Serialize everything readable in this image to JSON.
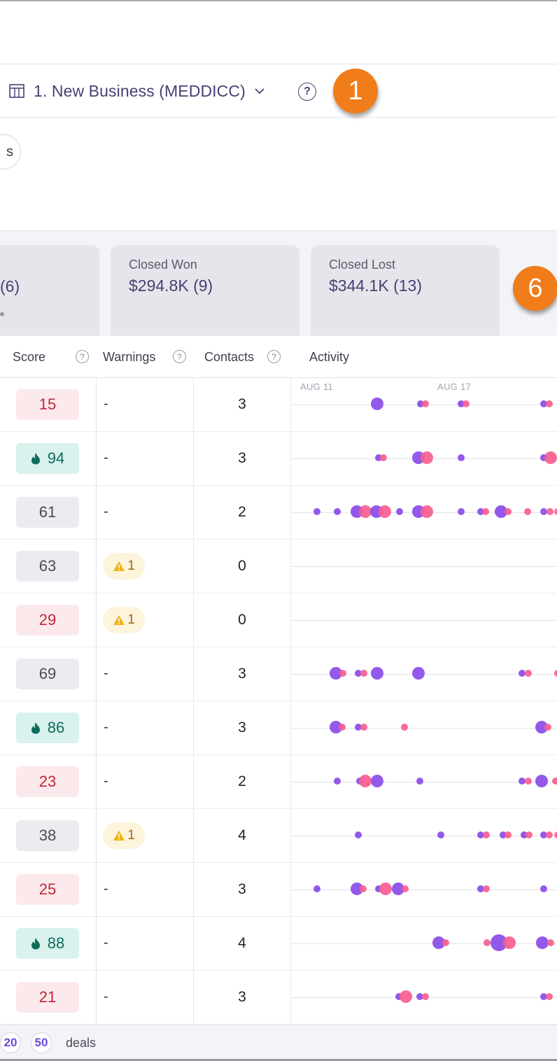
{
  "view": {
    "name": "1. New Business (MEDDICC)",
    "help": "?",
    "badge_1": "1",
    "badge_6": "6"
  },
  "filter": {
    "pill_label": "s"
  },
  "summary": {
    "partial": {
      "value": "(6)"
    },
    "won": {
      "label": "Closed Won",
      "value": "$294.8K (9)"
    },
    "lost": {
      "label": "Closed Lost",
      "value": "$344.1K (13)"
    }
  },
  "table": {
    "headers": {
      "score": "Score",
      "warnings": "Warnings",
      "contacts": "Contacts",
      "activity": "Activity"
    },
    "help": "?",
    "axis": [
      "AUG 11",
      "AUG 17"
    ],
    "rows": [
      {
        "score": "15",
        "tier": "low",
        "flame": false,
        "warning": "-",
        "warn_count": "",
        "contacts": "3"
      },
      {
        "score": "94",
        "tier": "high",
        "flame": true,
        "warning": "-",
        "warn_count": "",
        "contacts": "3"
      },
      {
        "score": "61",
        "tier": "mid",
        "flame": false,
        "warning": "-",
        "warn_count": "",
        "contacts": "2"
      },
      {
        "score": "63",
        "tier": "mid",
        "flame": false,
        "warning": "",
        "warn_count": "1",
        "contacts": "0"
      },
      {
        "score": "29",
        "tier": "low",
        "flame": false,
        "warning": "",
        "warn_count": "1",
        "contacts": "0"
      },
      {
        "score": "69",
        "tier": "mid",
        "flame": false,
        "warning": "-",
        "warn_count": "",
        "contacts": "3"
      },
      {
        "score": "86",
        "tier": "high",
        "flame": true,
        "warning": "-",
        "warn_count": "",
        "contacts": "3"
      },
      {
        "score": "23",
        "tier": "low",
        "flame": false,
        "warning": "-",
        "warn_count": "",
        "contacts": "2"
      },
      {
        "score": "38",
        "tier": "mid",
        "flame": false,
        "warning": "",
        "warn_count": "1",
        "contacts": "4"
      },
      {
        "score": "25",
        "tier": "low",
        "flame": false,
        "warning": "-",
        "warn_count": "",
        "contacts": "3"
      },
      {
        "score": "88",
        "tier": "high",
        "flame": true,
        "warning": "-",
        "warn_count": "",
        "contacts": "4"
      },
      {
        "score": "21",
        "tier": "low",
        "flame": false,
        "warning": "-",
        "warn_count": "",
        "contacts": "3"
      }
    ]
  },
  "footer": {
    "sizes": [
      "20",
      "50"
    ],
    "label": "deals"
  },
  "colors": {
    "purple": "#8a4be8",
    "pink": "#f75e8f",
    "accent": "#4a3f73",
    "badge": "#f07c1a"
  }
}
